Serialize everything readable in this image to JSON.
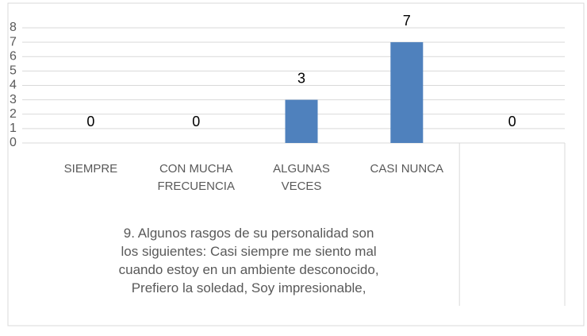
{
  "chart_data": {
    "type": "bar",
    "categories": [
      "SIEMPRE",
      "CON MUCHA FRECUENCIA",
      "ALGUNAS VECES",
      "CASI NUNCA",
      null
    ],
    "values": [
      0,
      0,
      3,
      7,
      0
    ],
    "color": "#4f81bd",
    "x_label": "9.  Algunos rasgos de su personalidad son los siguientes: Casi siempre me siento mal cuando estoy en un ambiente desconocido, Prefiero la soledad, Soy impresionable,",
    "ylim": [
      0,
      8
    ],
    "yticks": [
      0,
      1,
      2,
      3,
      4,
      5,
      6,
      7,
      8
    ],
    "grid": true
  }
}
